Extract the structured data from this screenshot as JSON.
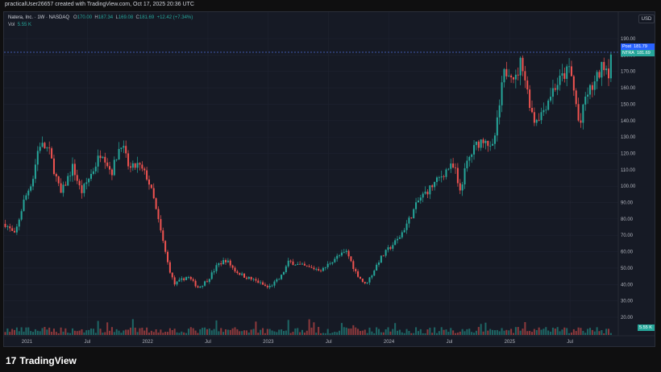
{
  "header": {
    "caption": "practicalUser26657 created with TradingView.com, Oct 17, 2025 20:36 UTC"
  },
  "legend": {
    "symbol": "Natera, Inc. · 1W · NASDAQ",
    "open_label": "O",
    "open_value": "170.00",
    "high_label": "H",
    "high_value": "187.34",
    "low_label": "L",
    "low_value": "169.08",
    "close_label": "C",
    "close_value": "181.69",
    "change": "+12.42 (+7.34%)"
  },
  "volume_legend": {
    "label": "Vol",
    "value": "5.55 K"
  },
  "currency_button": "USD",
  "price_tags": {
    "post_label": "Post",
    "post_value": "181.79",
    "symbol_label": "NTRA",
    "symbol_value": "181.69",
    "volume_value": "5.55 K"
  },
  "brand": {
    "name": "TradingView",
    "mark": "17"
  },
  "colors": {
    "up": "#26a69a",
    "down": "#ef5350",
    "background": "#161a25",
    "post_tag": "#2962ff",
    "symbol_tag": "#26a69a",
    "vol_tag": "#ab47bc"
  },
  "chart_data": {
    "type": "candlestick",
    "interval": "1W",
    "ylim": [
      10,
      195
    ],
    "y_ticks": [
      "20.00",
      "30.00",
      "40.00",
      "50.00",
      "60.00",
      "70.00",
      "80.00",
      "90.00",
      "100.00",
      "110.00",
      "120.00",
      "130.00",
      "140.00",
      "150.00",
      "160.00",
      "170.00",
      "180.00",
      "190.00"
    ],
    "x_ticks": [
      "2021",
      "Jul",
      "2022",
      "Jul",
      "2023",
      "Jul",
      "2024",
      "Jul",
      "2025",
      "Jul"
    ],
    "last_close": 181.69,
    "post_price": 181.79,
    "price_path": [
      [
        2020.82,
        77
      ],
      [
        2020.9,
        70
      ],
      [
        2020.97,
        90
      ],
      [
        2021.05,
        105
      ],
      [
        2021.1,
        126
      ],
      [
        2021.18,
        122
      ],
      [
        2021.28,
        95
      ],
      [
        2021.38,
        112
      ],
      [
        2021.45,
        96
      ],
      [
        2021.55,
        110
      ],
      [
        2021.62,
        122
      ],
      [
        2021.7,
        108
      ],
      [
        2021.78,
        127
      ],
      [
        2021.85,
        110
      ],
      [
        2021.92,
        113
      ],
      [
        2022.0,
        105
      ],
      [
        2022.05,
        92
      ],
      [
        2022.1,
        75
      ],
      [
        2022.17,
        52
      ],
      [
        2022.22,
        40
      ],
      [
        2022.33,
        45
      ],
      [
        2022.42,
        38
      ],
      [
        2022.5,
        43
      ],
      [
        2022.58,
        52
      ],
      [
        2022.65,
        55
      ],
      [
        2022.73,
        48
      ],
      [
        2022.8,
        45
      ],
      [
        2022.9,
        42
      ],
      [
        2023.0,
        38
      ],
      [
        2023.1,
        44
      ],
      [
        2023.17,
        54
      ],
      [
        2023.25,
        52
      ],
      [
        2023.35,
        50
      ],
      [
        2023.45,
        49
      ],
      [
        2023.55,
        56
      ],
      [
        2023.65,
        60
      ],
      [
        2023.72,
        48
      ],
      [
        2023.8,
        40
      ],
      [
        2023.85,
        45
      ],
      [
        2023.92,
        55
      ],
      [
        2024.0,
        62
      ],
      [
        2024.08,
        68
      ],
      [
        2024.17,
        80
      ],
      [
        2024.25,
        92
      ],
      [
        2024.33,
        98
      ],
      [
        2024.42,
        105
      ],
      [
        2024.5,
        112
      ],
      [
        2024.55,
        110
      ],
      [
        2024.58,
        95
      ],
      [
        2024.65,
        115
      ],
      [
        2024.72,
        125
      ],
      [
        2024.8,
        130
      ],
      [
        2024.85,
        120
      ],
      [
        2024.9,
        140
      ],
      [
        2024.95,
        168
      ],
      [
        2025.0,
        172
      ],
      [
        2025.05,
        165
      ],
      [
        2025.1,
        178
      ],
      [
        2025.14,
        160
      ],
      [
        2025.2,
        140
      ],
      [
        2025.27,
        145
      ],
      [
        2025.35,
        158
      ],
      [
        2025.42,
        165
      ],
      [
        2025.5,
        172
      ],
      [
        2025.55,
        150
      ],
      [
        2025.58,
        135
      ],
      [
        2025.63,
        155
      ],
      [
        2025.7,
        162
      ],
      [
        2025.78,
        175
      ],
      [
        2025.82,
        170
      ],
      [
        2025.84,
        181.69
      ]
    ]
  }
}
